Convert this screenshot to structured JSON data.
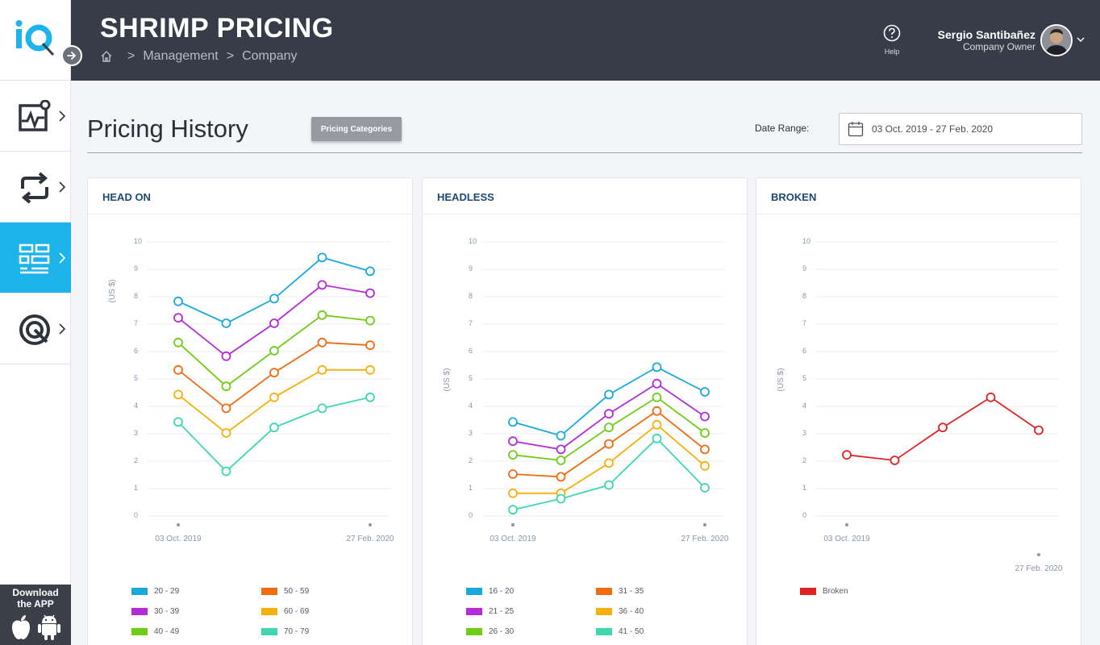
{
  "app": {
    "title": "SHRIMP PRICING",
    "breadcrumb": [
      "Management",
      "Company"
    ]
  },
  "header": {
    "help_label": "Help",
    "user_name": "Sergio Santibañez",
    "user_role": "Company Owner"
  },
  "sidebar": {
    "items": [
      {
        "icon": "analytics-icon",
        "active": false
      },
      {
        "icon": "sync-icon",
        "active": false
      },
      {
        "icon": "dashboard-icon",
        "active": true
      },
      {
        "icon": "settings-circle-icon",
        "active": false
      }
    ],
    "download_label_1": "Download",
    "download_label_2": "the APP"
  },
  "page": {
    "title": "Pricing History",
    "pricing_categories_label": "Pricing Categories",
    "date_range_label": "Date Range:",
    "date_range_value": "03 Oct. 2019 - 27 Feb. 2020"
  },
  "colors": {
    "accent": "#1cb4ea",
    "header_bg": "#373d48",
    "card_title": "#1d4a73"
  },
  "chart_data": [
    {
      "type": "line",
      "title": "HEAD ON",
      "ylabel": "(US $)",
      "ylim": [
        0,
        10
      ],
      "yticks": [
        0,
        1,
        2,
        3,
        4,
        5,
        6,
        7,
        8,
        9,
        10
      ],
      "x_tick_labels": [
        "03 Oct. 2019",
        "27 Feb. 2020"
      ],
      "x_tick_positions": [
        0,
        4
      ],
      "grid": true,
      "series": [
        {
          "name": "20 - 29",
          "color": "#1aa9dd",
          "values": [
            7.8,
            7.0,
            7.9,
            9.4,
            8.9
          ]
        },
        {
          "name": "30 - 39",
          "color": "#b52bd8",
          "values": [
            7.2,
            5.8,
            7.0,
            8.4,
            8.1
          ]
        },
        {
          "name": "40 - 49",
          "color": "#6fcd16",
          "values": [
            6.3,
            4.7,
            6.0,
            7.3,
            7.1
          ]
        },
        {
          "name": "50 - 59",
          "color": "#f06b12",
          "values": [
            5.3,
            3.9,
            5.2,
            6.3,
            6.2
          ]
        },
        {
          "name": "60 - 69",
          "color": "#f5b00e",
          "values": [
            4.4,
            3.0,
            4.3,
            5.3,
            5.3
          ]
        },
        {
          "name": "70 - 79",
          "color": "#3fd6b0",
          "values": [
            3.4,
            1.6,
            3.2,
            3.9,
            4.3
          ]
        }
      ]
    },
    {
      "type": "line",
      "title": "HEADLESS",
      "ylabel": "(US $)",
      "ylim": [
        0,
        10
      ],
      "yticks": [
        0,
        1,
        2,
        3,
        4,
        5,
        6,
        7,
        8,
        9,
        10
      ],
      "x_tick_labels": [
        "03 Oct. 2019",
        "27 Feb. 2020"
      ],
      "x_tick_positions": [
        0,
        4
      ],
      "grid": true,
      "series": [
        {
          "name": "16 - 20",
          "color": "#1aa9dd",
          "values": [
            3.4,
            2.9,
            4.4,
            5.4,
            4.5
          ]
        },
        {
          "name": "21 - 25",
          "color": "#b52bd8",
          "values": [
            2.7,
            2.4,
            3.7,
            4.8,
            3.6
          ]
        },
        {
          "name": "26 - 30",
          "color": "#6fcd16",
          "values": [
            2.2,
            2.0,
            3.2,
            4.3,
            3.0
          ]
        },
        {
          "name": "31 - 35",
          "color": "#f06b12",
          "values": [
            1.5,
            1.4,
            2.6,
            3.8,
            2.4
          ]
        },
        {
          "name": "36 - 40",
          "color": "#f5b00e",
          "values": [
            0.8,
            0.8,
            1.9,
            3.3,
            1.8
          ]
        },
        {
          "name": "41 - 50",
          "color": "#3fd6b0",
          "values": [
            0.2,
            0.6,
            1.1,
            2.8,
            1.0
          ]
        }
      ]
    },
    {
      "type": "line",
      "title": "BROKEN",
      "ylabel": "(US $)",
      "ylim": [
        0,
        10
      ],
      "yticks": [
        0,
        1,
        2,
        3,
        4,
        5,
        6,
        7,
        8,
        9,
        10
      ],
      "x_tick_labels": [
        "03 Oct. 2019",
        "27 Feb. 2020"
      ],
      "x_tick_positions": [
        0,
        4
      ],
      "grid": true,
      "series": [
        {
          "name": "Broken",
          "color": "#e02424",
          "values": [
            2.2,
            2.0,
            3.2,
            4.3,
            3.1
          ]
        }
      ]
    }
  ]
}
